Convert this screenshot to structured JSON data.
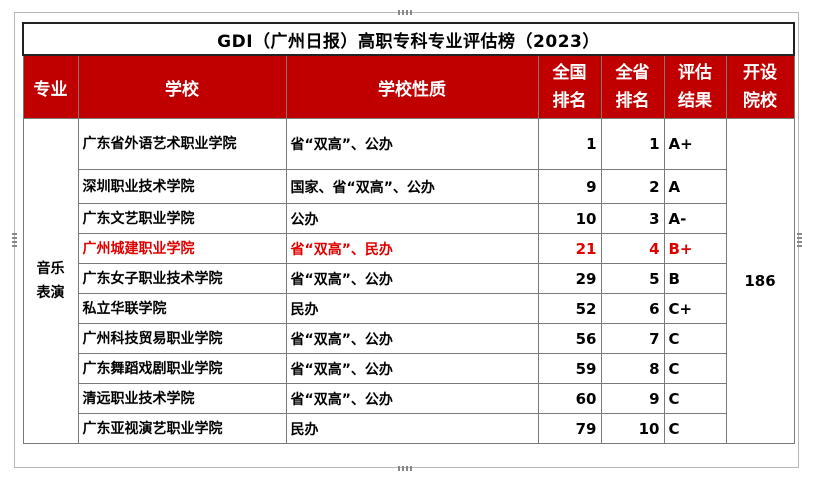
{
  "title": "GDI（广州日报）高职专科专业评估榜（2023）",
  "headers": {
    "major": "专业",
    "school": "学校",
    "nature": "学校性质",
    "national_rank": [
      "全国",
      "排名"
    ],
    "province_rank": [
      "全省",
      "排名"
    ],
    "result": [
      "评估",
      "结果"
    ],
    "count": [
      "开设",
      "院校"
    ]
  },
  "major": [
    "音乐",
    "表演"
  ],
  "institutions_count": "186",
  "rows": [
    {
      "school": "广东省外语艺术职业学院",
      "nature": "省“双高”、公办",
      "national": "1",
      "province": "1",
      "result": "A+"
    },
    {
      "school": "深圳职业技术学院",
      "nature": "国家、省“双高”、公办",
      "national": "9",
      "province": "2",
      "result": "A"
    },
    {
      "school": "广东文艺职业学院",
      "nature": "公办",
      "national": "10",
      "province": "3",
      "result": "A-"
    },
    {
      "school": "广州城建职业学院",
      "nature": "省“双高”、民办",
      "national": "21",
      "province": "4",
      "result": "B+"
    },
    {
      "school": "广东女子职业技术学院",
      "nature": "省“双高”、公办",
      "national": "29",
      "province": "5",
      "result": "B"
    },
    {
      "school": "私立华联学院",
      "nature": "民办",
      "national": "52",
      "province": "6",
      "result": "C+"
    },
    {
      "school": "广州科技贸易职业学院",
      "nature": "省“双高”、公办",
      "national": "56",
      "province": "7",
      "result": "C"
    },
    {
      "school": "广东舞蹈戏剧职业学院",
      "nature": "省“双高”、公办",
      "national": "59",
      "province": "8",
      "result": "C"
    },
    {
      "school": "清远职业技术学院",
      "nature": "省“双高”、公办",
      "national": "60",
      "province": "9",
      "result": "C"
    },
    {
      "school": "广东亚视演艺职业学院",
      "nature": "民办",
      "national": "79",
      "province": "10",
      "result": "C"
    }
  ],
  "colors": {
    "header_bg": "#c00000",
    "highlight_text": "#e00000"
  }
}
